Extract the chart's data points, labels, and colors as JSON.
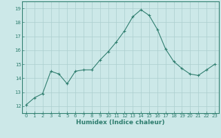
{
  "x": [
    0,
    1,
    2,
    3,
    4,
    5,
    6,
    7,
    8,
    9,
    10,
    11,
    12,
    13,
    14,
    15,
    16,
    17,
    18,
    19,
    20,
    21,
    22,
    23
  ],
  "y": [
    12.1,
    12.6,
    12.9,
    14.5,
    14.3,
    13.6,
    14.5,
    14.6,
    14.6,
    15.3,
    15.9,
    16.6,
    17.4,
    18.4,
    18.9,
    18.5,
    17.5,
    16.1,
    15.2,
    14.7,
    14.3,
    14.2,
    14.6,
    15.0
  ],
  "line_color": "#2e7d6e",
  "marker": "+",
  "marker_size": 3.5,
  "bg_color": "#cce8e8",
  "grid_color": "#aacece",
  "xlabel": "Humidex (Indice chaleur)",
  "xlim": [
    -0.5,
    23.5
  ],
  "ylim": [
    11.5,
    19.5
  ],
  "yticks": [
    12,
    13,
    14,
    15,
    16,
    17,
    18,
    19
  ],
  "xticks": [
    0,
    1,
    2,
    3,
    4,
    5,
    6,
    7,
    8,
    9,
    10,
    11,
    12,
    13,
    14,
    15,
    16,
    17,
    18,
    19,
    20,
    21,
    22,
    23
  ],
  "tick_color": "#2e7d6e",
  "xlabel_fontsize": 6.5,
  "tick_fontsize": 5.0,
  "lw": 0.8
}
